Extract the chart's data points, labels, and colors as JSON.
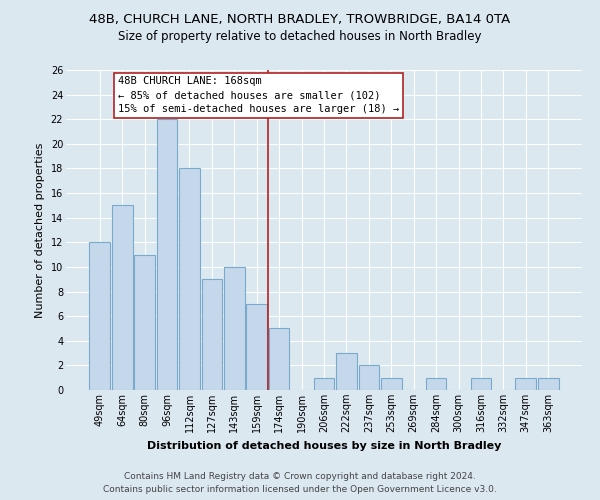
{
  "title": "48B, CHURCH LANE, NORTH BRADLEY, TROWBRIDGE, BA14 0TA",
  "subtitle": "Size of property relative to detached houses in North Bradley",
  "xlabel": "Distribution of detached houses by size in North Bradley",
  "ylabel": "Number of detached properties",
  "bar_labels": [
    "49sqm",
    "64sqm",
    "80sqm",
    "96sqm",
    "112sqm",
    "127sqm",
    "143sqm",
    "159sqm",
    "174sqm",
    "190sqm",
    "206sqm",
    "222sqm",
    "237sqm",
    "253sqm",
    "269sqm",
    "284sqm",
    "300sqm",
    "316sqm",
    "332sqm",
    "347sqm",
    "363sqm"
  ],
  "bar_values": [
    12,
    15,
    11,
    22,
    18,
    9,
    10,
    7,
    5,
    0,
    1,
    3,
    2,
    1,
    0,
    1,
    0,
    1,
    0,
    1,
    1
  ],
  "bar_color": "#c5d8eb",
  "bar_edge_color": "#7aaacb",
  "vline_x": 7.5,
  "vline_color": "#b22222",
  "annotation_title": "48B CHURCH LANE: 168sqm",
  "annotation_line1": "← 85% of detached houses are smaller (102)",
  "annotation_line2": "15% of semi-detached houses are larger (18) →",
  "annotation_box_edge": "#b22222",
  "annotation_box_bg": "white",
  "ylim": [
    0,
    26
  ],
  "yticks": [
    0,
    2,
    4,
    6,
    8,
    10,
    12,
    14,
    16,
    18,
    20,
    22,
    24,
    26
  ],
  "footer1": "Contains HM Land Registry data © Crown copyright and database right 2024.",
  "footer2": "Contains public sector information licensed under the Open Government Licence v3.0.",
  "background_color": "#dce8f0",
  "grid_color": "white",
  "title_fontsize": 9.5,
  "subtitle_fontsize": 8.5,
  "axis_label_fontsize": 8,
  "tick_fontsize": 7,
  "annotation_fontsize": 7.5,
  "footer_fontsize": 6.5
}
